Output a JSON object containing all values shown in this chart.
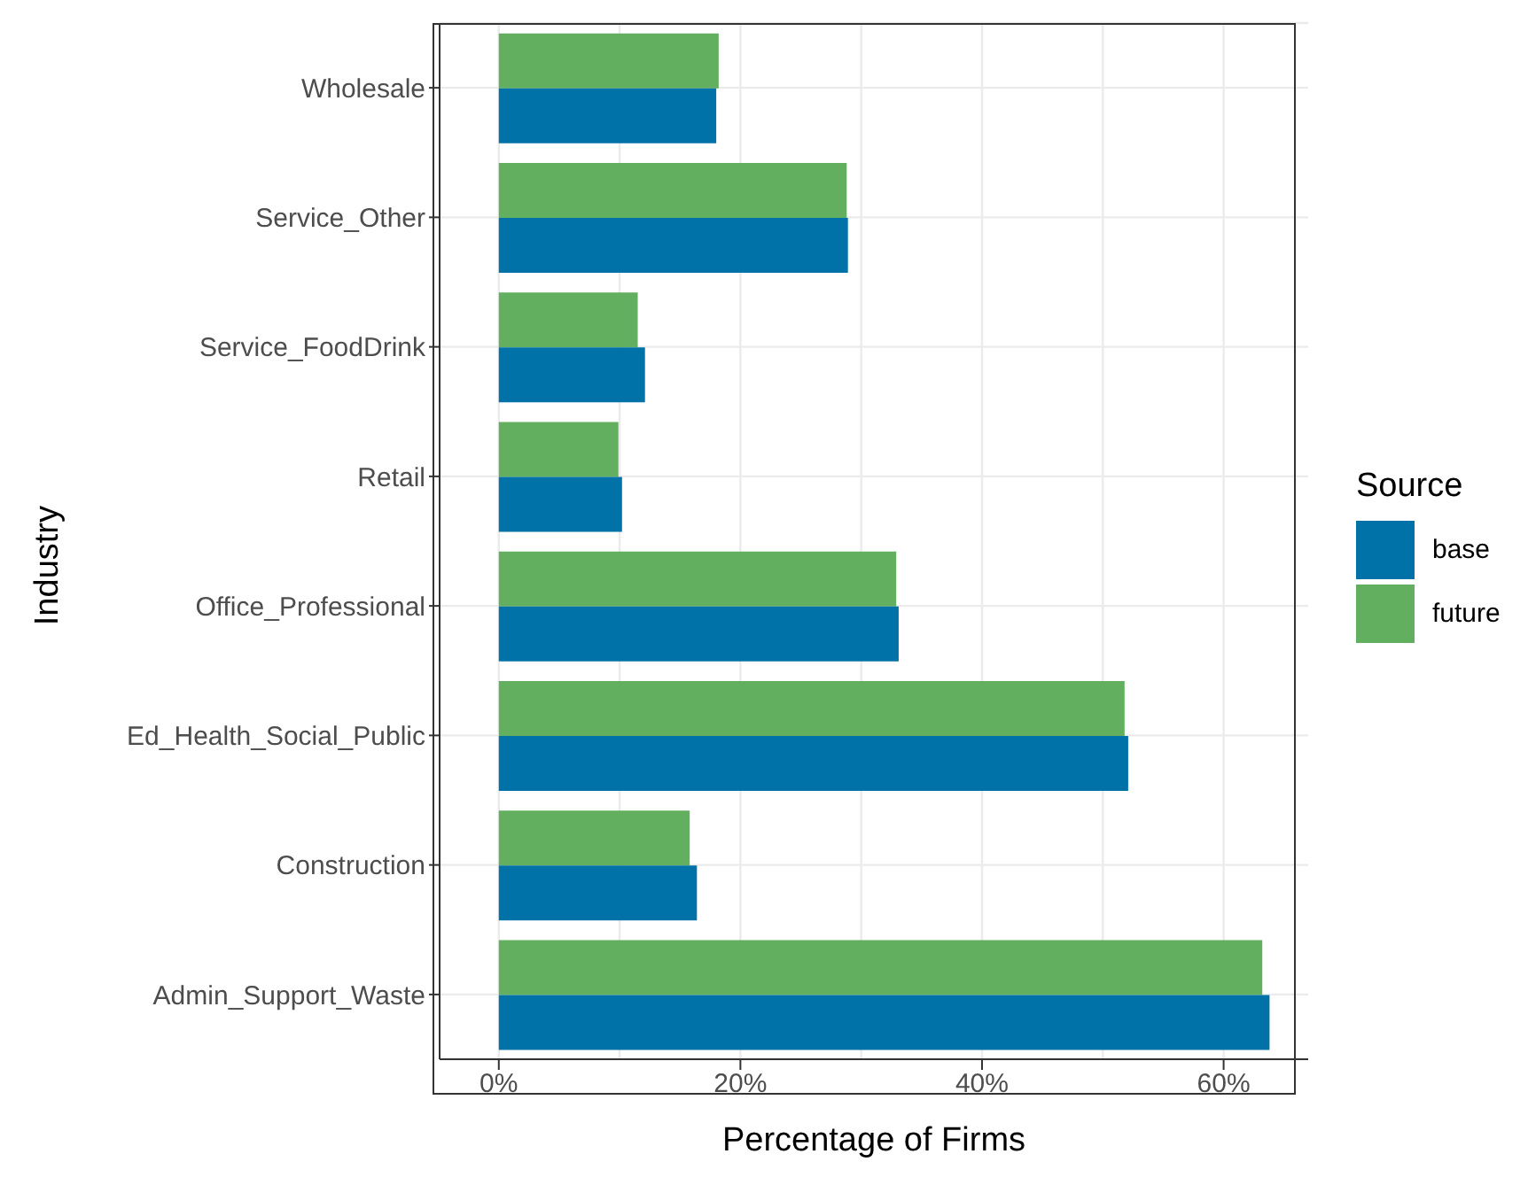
{
  "chart_data": {
    "type": "bar",
    "orientation": "horizontal",
    "xlabel": "Percentage of Firms",
    "ylabel": "Industry",
    "legend_title": "Source",
    "legend": "right",
    "categories": [
      "Wholesale",
      "Service_Other",
      "Service_FoodDrink",
      "Retail",
      "Office_Professional",
      "Ed_Health_Social_Public",
      "Construction",
      "Admin_Support_Waste"
    ],
    "series": [
      {
        "name": "base",
        "color": "#0072a8",
        "values": [
          18.0,
          28.9,
          12.1,
          10.2,
          33.1,
          52.1,
          16.4,
          63.8
        ]
      },
      {
        "name": "future",
        "color": "#62b05f",
        "values": [
          18.2,
          28.8,
          11.5,
          9.9,
          32.9,
          51.8,
          15.8,
          63.2
        ]
      }
    ],
    "xlim": [
      -4.9,
      67
    ],
    "xticks": [
      {
        "value": 0,
        "label": "0%"
      },
      {
        "value": 20,
        "label": "20%"
      },
      {
        "value": 40,
        "label": "40%"
      },
      {
        "value": 60,
        "label": "60%"
      }
    ],
    "grid": true
  }
}
